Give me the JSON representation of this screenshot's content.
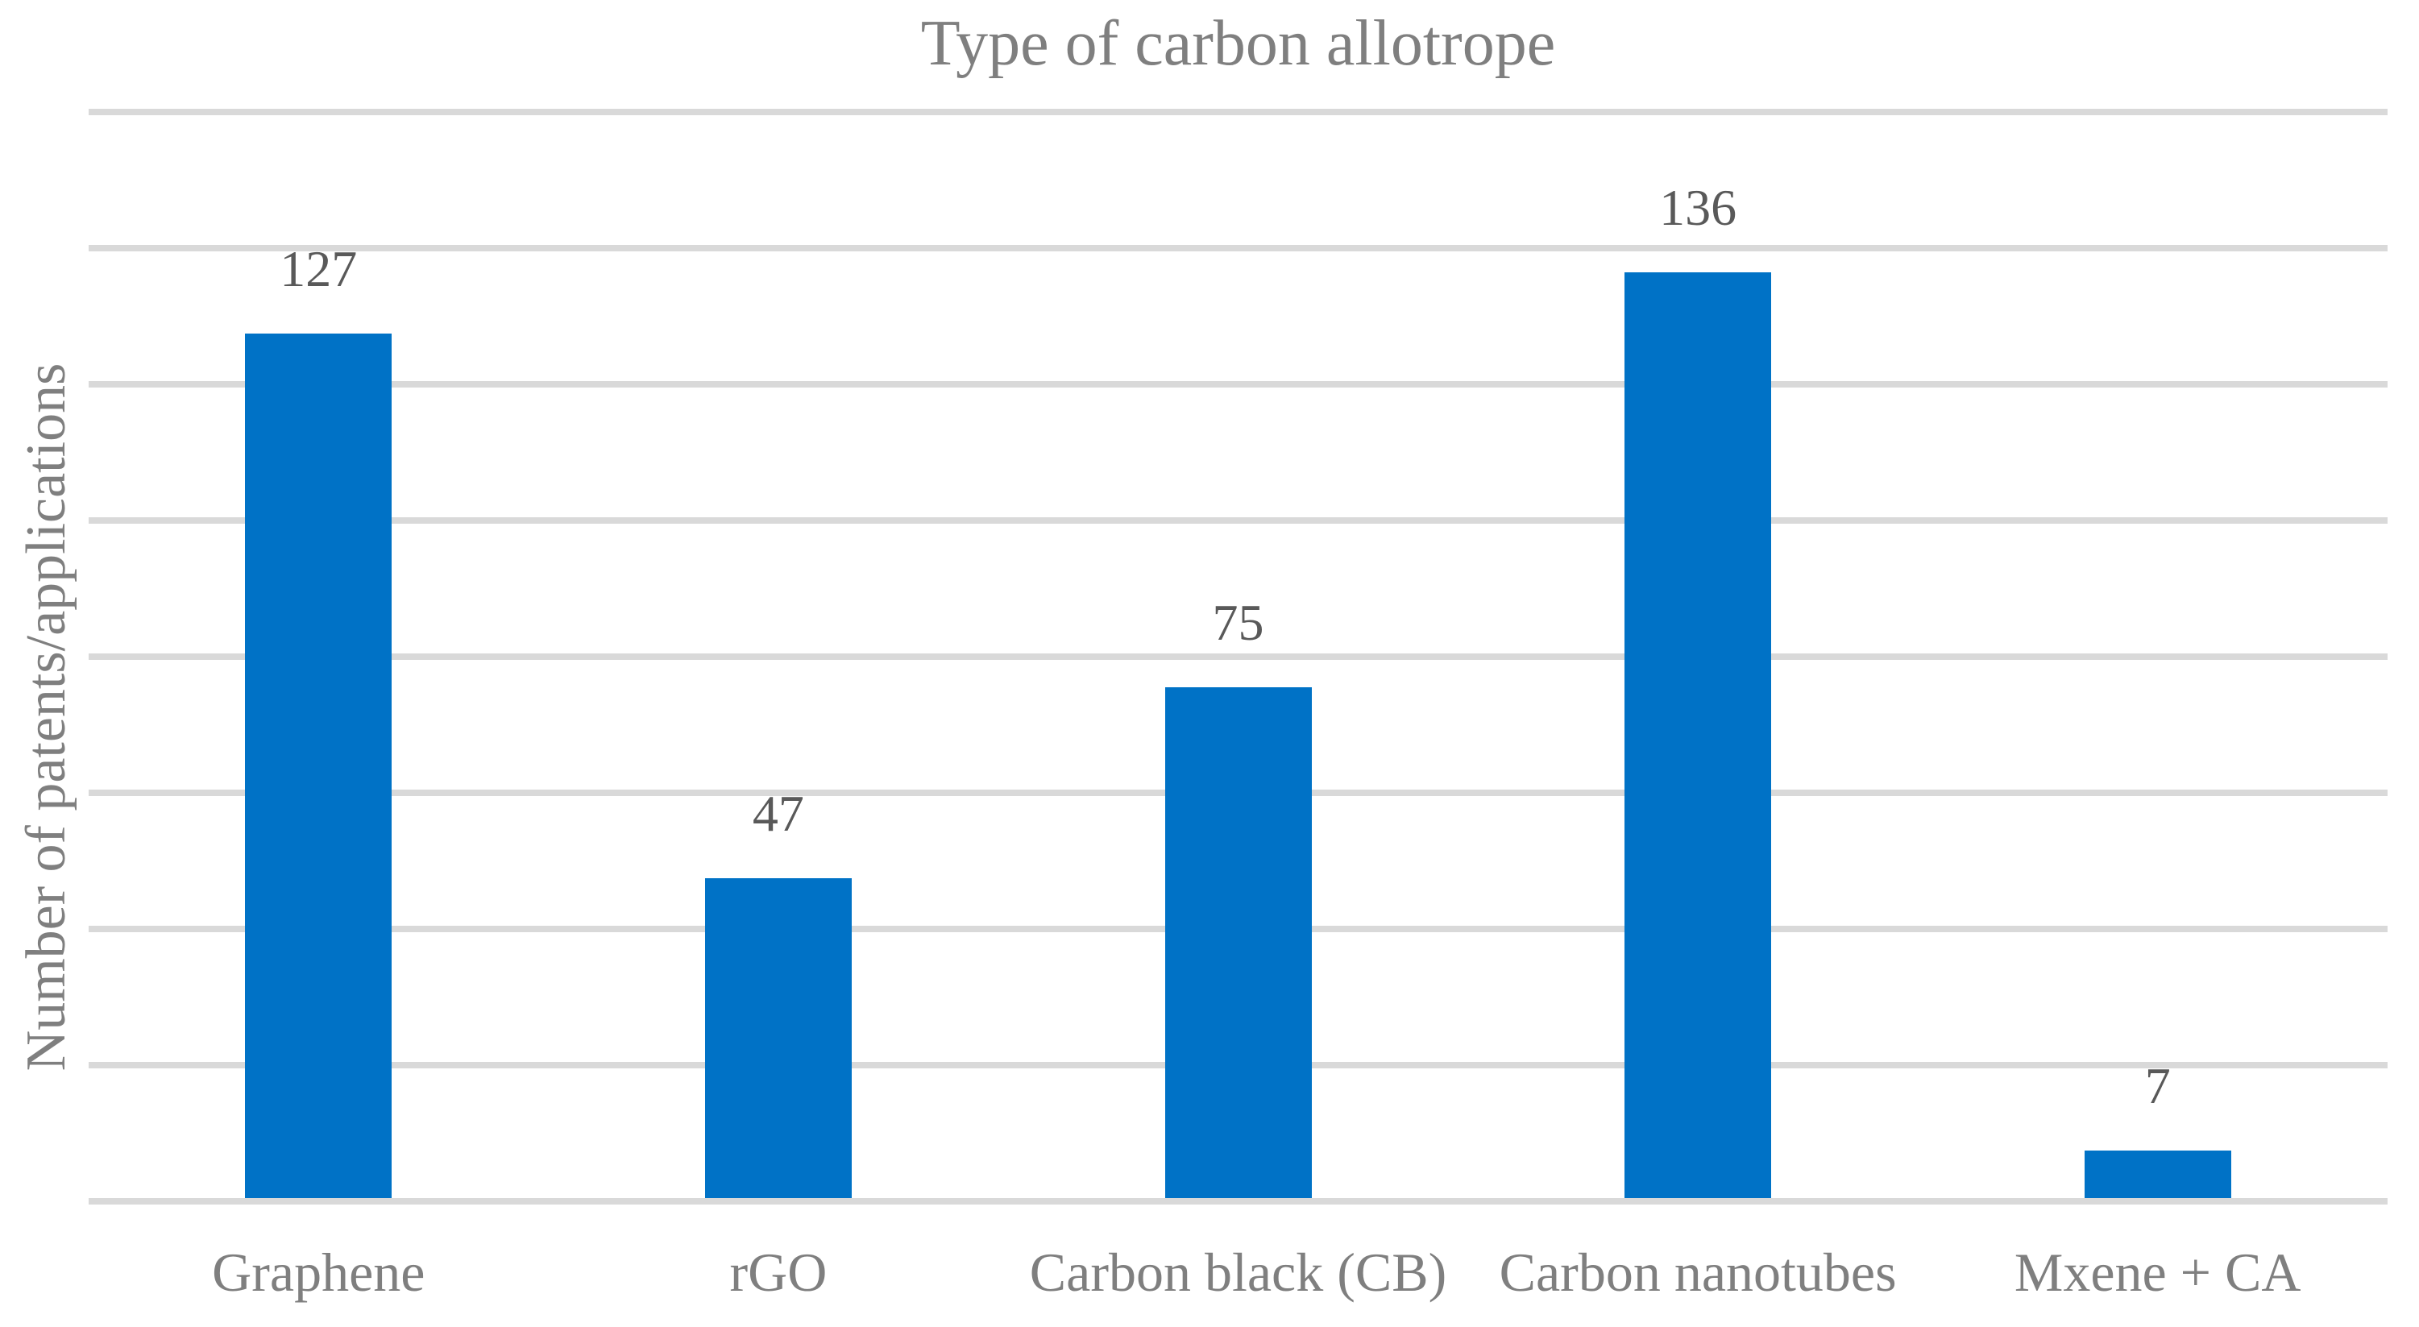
{
  "chart_data": {
    "type": "bar",
    "title": "Type of carbon allotrope",
    "xlabel": "",
    "ylabel": "Number of patents/applications",
    "categories": [
      "Graphene",
      "rGO",
      "Carbon black (CB)",
      "Carbon nanotubes",
      "Mxene + CA"
    ],
    "values": [
      127,
      47,
      75,
      136,
      7
    ],
    "data_labels": [
      "127",
      "47",
      "75",
      "136",
      "7"
    ],
    "ylim": [
      0,
      160
    ],
    "gridline_step": 20,
    "grid": true,
    "y_tick_labels_visible": false,
    "legend": "none"
  },
  "style": {
    "bar_color": "#0072C6",
    "gridline_color": "#D9D9D9",
    "title_color": "#7F7F7F",
    "axis_label_color": "#7F7F7F",
    "category_label_color": "#7F7F7F",
    "data_label_color": "#595959",
    "background_color": "#FFFFFF"
  }
}
